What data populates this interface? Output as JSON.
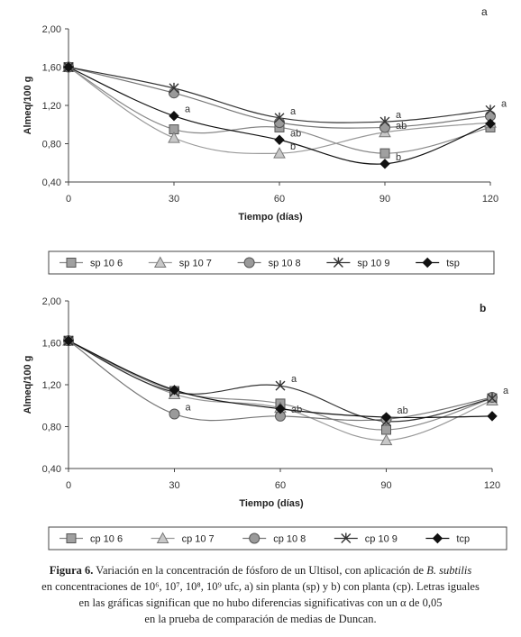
{
  "chart_data": [
    {
      "panel": "a",
      "type": "line",
      "xlabel": "Tiempo (días)",
      "ylabel": "Almeq/100 g",
      "x": [
        0,
        30,
        60,
        90,
        120
      ],
      "x_ticks": [
        "0",
        "30",
        "60",
        "90",
        "120"
      ],
      "ylim": [
        0.4,
        2.0
      ],
      "y_ticks": [
        "0,40",
        "0,80",
        "1,20",
        "1,60",
        "2,00"
      ],
      "grid": false,
      "legend_position": "bottom",
      "series": [
        {
          "name": "sp 10 6",
          "marker": "square",
          "color": "#888888",
          "values": [
            1.6,
            0.95,
            0.97,
            0.7,
            0.97
          ]
        },
        {
          "name": "sp 10 7",
          "marker": "triangle",
          "color": "#999999",
          "values": [
            1.6,
            0.86,
            0.7,
            0.92,
            1.02
          ]
        },
        {
          "name": "sp 10 8",
          "marker": "circle",
          "color": "#777777",
          "values": [
            1.6,
            1.33,
            1.02,
            0.97,
            1.09
          ]
        },
        {
          "name": "sp 10 9",
          "marker": "x",
          "color": "#333333",
          "values": [
            1.6,
            1.38,
            1.07,
            1.03,
            1.15
          ]
        },
        {
          "name": "tsp",
          "marker": "diamond",
          "color": "#111111",
          "values": [
            1.6,
            1.09,
            0.84,
            0.59,
            1.01
          ]
        }
      ],
      "annotations": [
        {
          "text": "a",
          "x": 30,
          "y": 1.09
        },
        {
          "text": "a",
          "x": 60,
          "y": 1.07
        },
        {
          "text": "ab",
          "x": 60,
          "y": 0.84
        },
        {
          "text": "b",
          "x": 60,
          "y": 0.7
        },
        {
          "text": "a",
          "x": 90,
          "y": 1.03
        },
        {
          "text": "ab",
          "x": 90,
          "y": 0.92
        },
        {
          "text": "b",
          "x": 90,
          "y": 0.59
        },
        {
          "text": "a",
          "x": 120,
          "y": 1.15
        }
      ]
    },
    {
      "panel": "b",
      "type": "line",
      "xlabel": "Tiempo (días)",
      "ylabel": "Almeq/100 g",
      "x": [
        0,
        30,
        60,
        90,
        120
      ],
      "x_ticks": [
        "0",
        "30",
        "60",
        "90",
        "120"
      ],
      "ylim": [
        0.4,
        2.0
      ],
      "y_ticks": [
        "0,40",
        "0,80",
        "1,20",
        "1,60",
        "2,00"
      ],
      "grid": false,
      "legend_position": "bottom",
      "series": [
        {
          "name": "cp 10 6",
          "marker": "square",
          "color": "#888888",
          "values": [
            1.62,
            1.14,
            1.02,
            0.77,
            1.07
          ]
        },
        {
          "name": "cp 10 7",
          "marker": "triangle",
          "color": "#999999",
          "values": [
            1.62,
            1.11,
            0.98,
            0.67,
            1.05
          ]
        },
        {
          "name": "cp 10 8",
          "marker": "circle",
          "color": "#777777",
          "values": [
            1.62,
            0.92,
            0.9,
            0.87,
            1.08
          ]
        },
        {
          "name": "cp 10 9",
          "marker": "x",
          "color": "#333333",
          "values": [
            1.62,
            1.13,
            1.19,
            0.85,
            1.07
          ]
        },
        {
          "name": "tcp",
          "marker": "diamond",
          "color": "#111111",
          "values": [
            1.62,
            1.15,
            0.97,
            0.89,
            0.9
          ]
        }
      ],
      "annotations": [
        {
          "text": "a",
          "x": 30,
          "y": 0.92
        },
        {
          "text": "a",
          "x": 60,
          "y": 1.19
        },
        {
          "text": "ab",
          "x": 60,
          "y": 0.9
        },
        {
          "text": "ab",
          "x": 90,
          "y": 0.89
        },
        {
          "text": "a",
          "x": 120,
          "y": 1.08
        }
      ]
    }
  ],
  "caption": {
    "lead": "Figura 6.",
    "line1_text": " Variación en la concentración de fósforo de un Ultisol, con aplicación de ",
    "line1_italic": "B. subtilis",
    "line2": "en concentraciones de 10⁶, 10⁷, 10⁸, 10⁹ ufc, a) sin planta (sp) y b) con planta (cp). Letras iguales",
    "line3": "en las gráficas significan que no hubo diferencias significativas con un α de 0,05",
    "line4": "en la prueba de comparación de medias de Duncan."
  }
}
